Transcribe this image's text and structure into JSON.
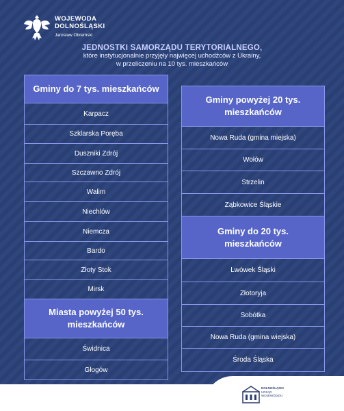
{
  "header": {
    "org_line1": "WOJEWODA",
    "org_line2": "DOLNOŚLĄSKI",
    "org_person": "Jarosław Obremski",
    "title": "JEDNOSTKI SAMORZĄDU TERYTORIALNEGO,",
    "subtitle1": "które instytucjonalnie przyjęły najwięcej uchodźców z Ukrainy,",
    "subtitle2": "w przeliczeniu na 10 tys. mieszkańców"
  },
  "left_column": {
    "group1_title": "Gminy do 7 tys. mieszkańców",
    "group1_items": [
      "Karpacz",
      "Szklarska Poręba",
      "Duszniki Zdrój",
      "Szczawno Zdrój",
      "Walim",
      "Niechlów",
      "Niemcza",
      "Bardo",
      "Złoty Stok",
      "Mirsk"
    ],
    "group2_title": "Miasta powyżej 50 tys. mieszkańców",
    "group2_items": [
      "Świdnica",
      "Głogów"
    ]
  },
  "right_column": {
    "group1_title": "Gminy powyżej 20 tys. mieszkańców",
    "group1_items": [
      "Nowa Ruda (gmina miejska)",
      "Wołów",
      "Strzelin",
      "Ząbkowice Śląskie"
    ],
    "group2_title": "Gminy do 20 tys. mieszkańców",
    "group2_items": [
      "Lwówek Śląski",
      "Złotoryja",
      "Sobótka",
      "Nowa Ruda (gmina wiejska)",
      "Środa Śląska"
    ]
  },
  "footer": {
    "logo_line1": "DOLNOŚLĄSKI",
    "logo_line2": "URZĄD WOJEWÓDZKI"
  },
  "colors": {
    "background": "#2f467d",
    "header_cell": "#5665c7",
    "border": "#8a97ea",
    "title": "#c9d0ff"
  },
  "icons": {
    "coat_of_arms": "eagle-emblem-icon",
    "footer_logo": "office-building-icon"
  }
}
